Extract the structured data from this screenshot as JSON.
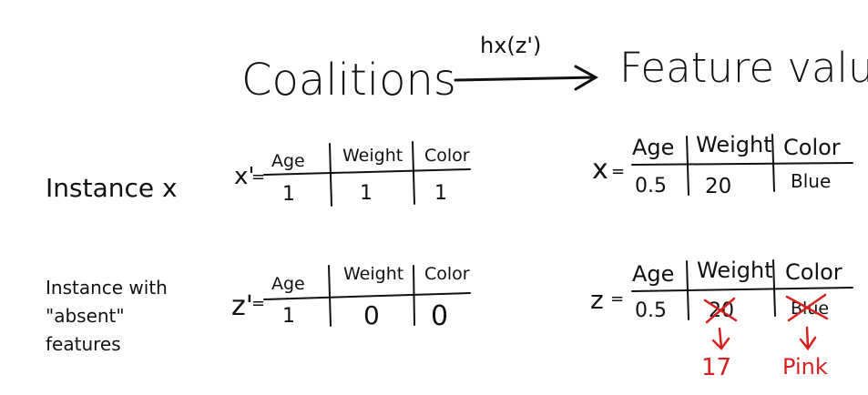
{
  "header": {
    "left_label": "Coalitions",
    "arrow_label": "hx(z')",
    "right_label": "Feature values"
  },
  "rows": {
    "instance_label": "Instance x",
    "absent_label_lines": [
      "Instance with",
      "\"absent\"",
      "features"
    ]
  },
  "tables": {
    "x_prime": {
      "symbol": "x'",
      "headers": [
        "Age",
        "Weight",
        "Color"
      ],
      "values": [
        "1",
        "1",
        "1"
      ]
    },
    "x": {
      "symbol": "x",
      "headers": [
        "Age",
        "Weight",
        "Color"
      ],
      "values": [
        "0.5",
        "20",
        "Blue"
      ]
    },
    "z_prime": {
      "symbol": "z'",
      "headers": [
        "Age",
        "Weight",
        "Color"
      ],
      "values": [
        "1",
        "0",
        "0"
      ]
    },
    "z": {
      "symbol": "z",
      "headers": [
        "Age",
        "Weight",
        "Color"
      ],
      "values": [
        "0.5",
        "20",
        "Blue"
      ],
      "replacements": [
        "17",
        "Pink"
      ]
    }
  },
  "colors": {
    "ink": "#111111",
    "highlight": "#d62020"
  }
}
